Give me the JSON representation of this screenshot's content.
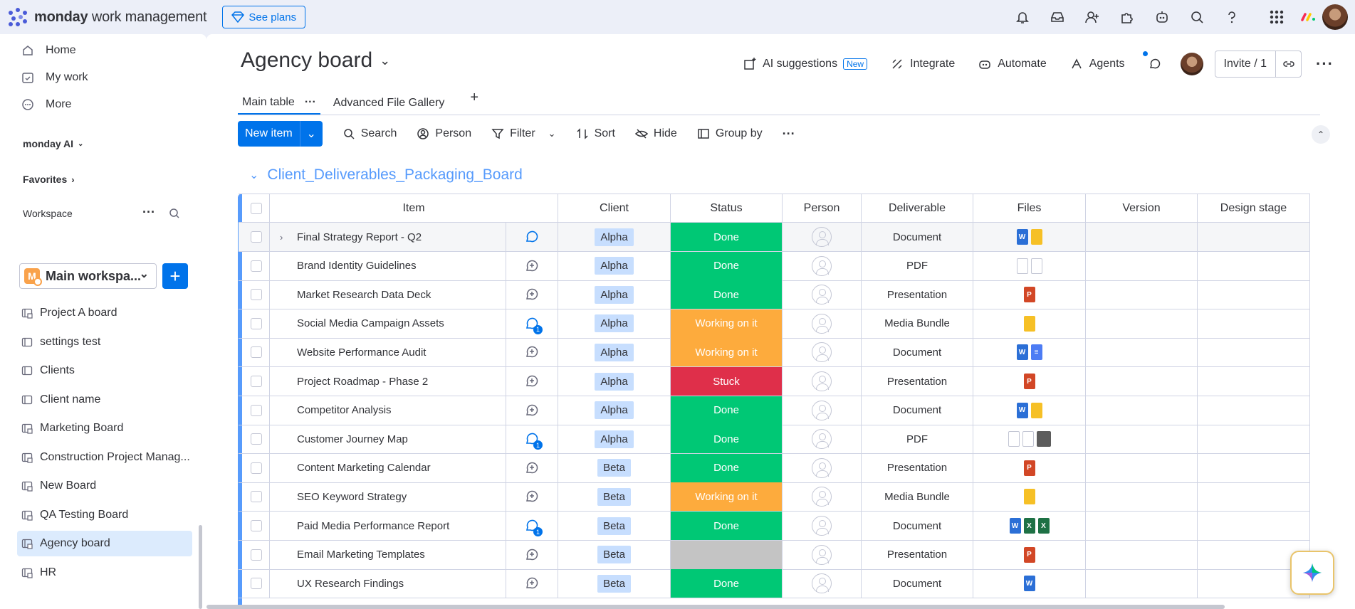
{
  "app": {
    "logo_bold": "monday",
    "logo_rest": " work management",
    "see_plans": "See plans"
  },
  "sidebar": {
    "nav": [
      {
        "label": "Home",
        "icon": "home-icon"
      },
      {
        "label": "My work",
        "icon": "calendar-check-icon"
      },
      {
        "label": "More",
        "icon": "more-circle-icon"
      }
    ],
    "monday_ai": "monday AI",
    "favorites": "Favorites",
    "workspace_title": "Workspace",
    "workspace_name": "Main workspa...",
    "workspace_initial": "M",
    "boards": [
      {
        "label": "Project A board"
      },
      {
        "label": "settings test"
      },
      {
        "label": "Clients"
      },
      {
        "label": "Client name"
      },
      {
        "label": "Marketing Board"
      },
      {
        "label": "Construction Project Manag..."
      },
      {
        "label": "New Board"
      },
      {
        "label": "QA Testing Board"
      },
      {
        "label": "Agency board",
        "active": true
      },
      {
        "label": "HR"
      }
    ]
  },
  "board": {
    "title": "Agency board",
    "ai_suggestions": "AI suggestions",
    "new_badge": "New",
    "integrate": "Integrate",
    "automate": "Automate",
    "agents": "Agents",
    "invite": "Invite / 1",
    "tabs": [
      "Main table",
      "Advanced File Gallery"
    ],
    "toolbar": {
      "new_item": "New item",
      "search": "Search",
      "person": "Person",
      "filter": "Filter",
      "sort": "Sort",
      "hide": "Hide",
      "group_by": "Group by"
    },
    "group_title": "Client_Deliverables_Packaging_Board",
    "columns": [
      "Item",
      "Client",
      "Status",
      "Person",
      "Deliverable",
      "Files",
      "Version",
      "Design stage"
    ]
  },
  "status_colors": {
    "Done": "#00c875",
    "Working on it": "#fdab3d",
    "Stuck": "#df2f4a",
    "": "#c4c4c4"
  },
  "rows": [
    {
      "item": "Final Strategy Report - Q2",
      "conv": "hover",
      "client": "Alpha",
      "status": "Done",
      "deliverable": "Document",
      "files": [
        "word",
        "yellow"
      ]
    },
    {
      "item": "Brand Identity Guidelines",
      "conv": "add",
      "client": "Alpha",
      "status": "Done",
      "deliverable": "PDF",
      "files": [
        "pdf",
        "pdf"
      ]
    },
    {
      "item": "Market Research Data Deck",
      "conv": "add",
      "client": "Alpha",
      "status": "Done",
      "deliverable": "Presentation",
      "files": [
        "ppt"
      ]
    },
    {
      "item": "Social Media Campaign Assets",
      "conv": "1",
      "client": "Alpha",
      "status": "Working on it",
      "deliverable": "Media Bundle",
      "files": [
        "yellow"
      ]
    },
    {
      "item": "Website Performance Audit",
      "conv": "add",
      "client": "Alpha",
      "status": "Working on it",
      "deliverable": "Document",
      "files": [
        "word",
        "docs"
      ]
    },
    {
      "item": "Project Roadmap - Phase 2",
      "conv": "add",
      "client": "Alpha",
      "status": "Stuck",
      "deliverable": "Presentation",
      "files": [
        "ppt"
      ]
    },
    {
      "item": "Competitor Analysis",
      "conv": "add",
      "client": "Alpha",
      "status": "Done",
      "deliverable": "Document",
      "files": [
        "word",
        "yellow"
      ]
    },
    {
      "item": "Customer Journey Map",
      "conv": "1",
      "client": "Alpha",
      "status": "Done",
      "deliverable": "PDF",
      "files": [
        "pdf",
        "pdf",
        "img"
      ]
    },
    {
      "item": "Content Marketing Calendar",
      "conv": "add",
      "client": "Beta",
      "status": "Done",
      "deliverable": "Presentation",
      "files": [
        "ppt"
      ]
    },
    {
      "item": "SEO Keyword Strategy",
      "conv": "add",
      "client": "Beta",
      "status": "Working on it",
      "deliverable": "Media Bundle",
      "files": [
        "yellow"
      ]
    },
    {
      "item": "Paid Media Performance Report",
      "conv": "1",
      "client": "Beta",
      "status": "Done",
      "deliverable": "Document",
      "files": [
        "word",
        "excel",
        "excel"
      ]
    },
    {
      "item": "Email Marketing Templates",
      "conv": "add",
      "client": "Beta",
      "status": "",
      "deliverable": "Presentation",
      "files": [
        "ppt"
      ]
    },
    {
      "item": "UX Research Findings",
      "conv": "add",
      "client": "Beta",
      "status": "Done",
      "deliverable": "Document",
      "files": [
        "word"
      ]
    }
  ]
}
